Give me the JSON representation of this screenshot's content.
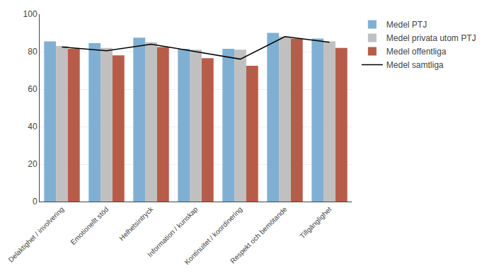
{
  "chart_data": {
    "type": "bar",
    "categories": [
      "Delaktighet / involvering",
      "Emotionellt stöd",
      "Helhetsintryck",
      "Information / kunskap",
      "Kontinuitet / koordinering",
      "Respekt och bemötande",
      "Tillgänglighet"
    ],
    "series": [
      {
        "name": "Medel PTJ",
        "color": "#7fb0d4",
        "values": [
          85.5,
          84.5,
          87.5,
          81.5,
          81.5,
          90.0,
          87.0
        ]
      },
      {
        "name": "Medel privata utom PTJ",
        "color": "#c0c0c0",
        "values": [
          83.0,
          82.0,
          85.0,
          81.0,
          81.0,
          88.0,
          85.5
        ]
      },
      {
        "name": "Medel offentliga",
        "color": "#b85c4a",
        "values": [
          81.5,
          78.0,
          82.5,
          76.5,
          72.5,
          87.0,
          82.0
        ]
      },
      {
        "name": "Medel samtliga",
        "type": "line",
        "color": "#000000",
        "values": [
          82.5,
          80.5,
          84.0,
          80.0,
          76.0,
          88.0,
          85.0
        ]
      }
    ],
    "ylim": [
      0,
      100
    ],
    "yticks": [
      0,
      20,
      40,
      60,
      80,
      100
    ],
    "grid": true,
    "legend": "right"
  }
}
